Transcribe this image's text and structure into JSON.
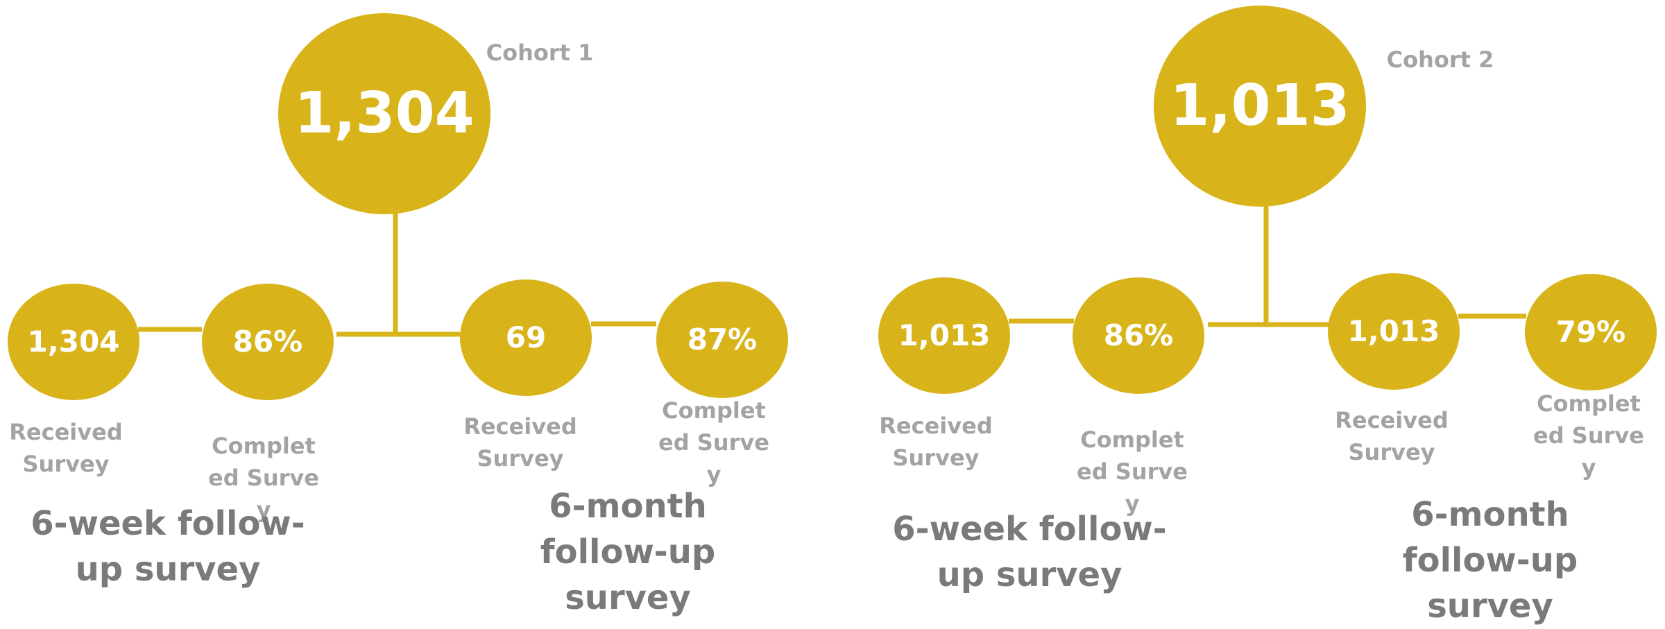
{
  "cohorts": [
    {
      "label": "Cohort 1",
      "total": "1,304",
      "followups": [
        {
          "title": "6-week follow-up survey",
          "received": "1,304",
          "received_label": "Received Survey",
          "completed": "86%",
          "completed_label": "Completed Survey"
        },
        {
          "title": "6-month follow-up survey",
          "received": "69",
          "received_label": "Received Survey",
          "completed": "87%",
          "completed_label": "Completed Survey"
        }
      ]
    },
    {
      "label": "Cohort 2",
      "total": "1,013",
      "followups": [
        {
          "title": "6-week follow-up survey",
          "received": "1,013",
          "received_label": "Received Survey",
          "completed": "86%",
          "completed_label": "Completed Survey"
        },
        {
          "title": "6-month follow-up survey",
          "received": "1,013",
          "received_label": "Received Survey",
          "completed": "79%",
          "completed_label": "Completed Survey"
        }
      ]
    }
  ]
}
